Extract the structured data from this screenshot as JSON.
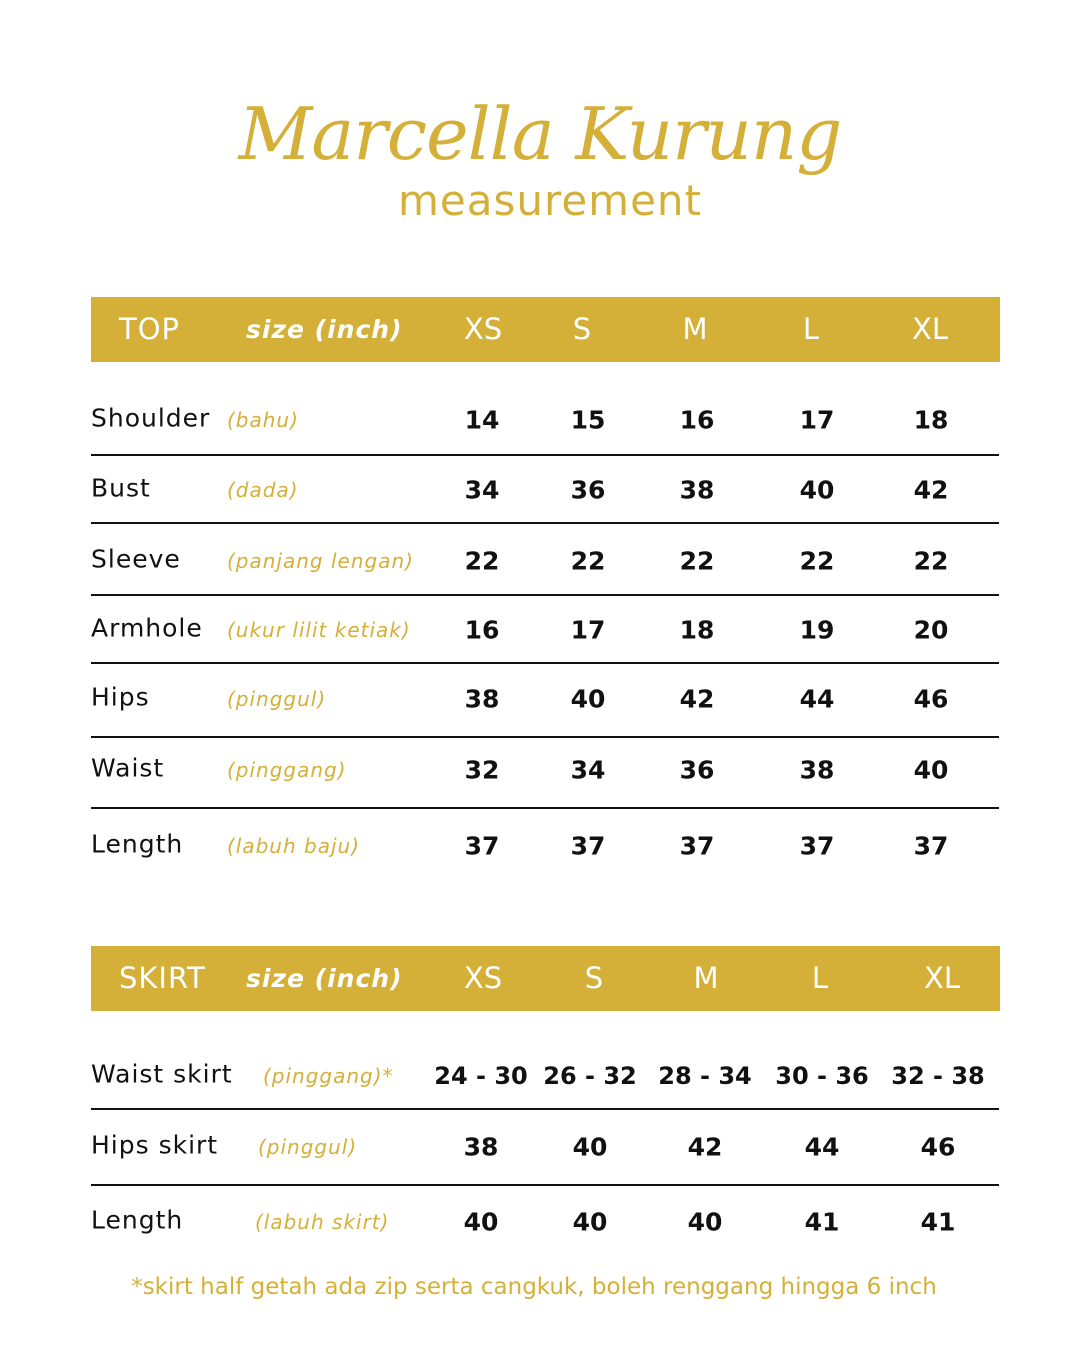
{
  "title": "Marcella Kurung",
  "subtitle": "measurement",
  "accent_color": "#d4b038",
  "top": {
    "section": "TOP",
    "unit": "size (inch)",
    "sizes": [
      "XS",
      "S",
      "M",
      "L",
      "XL"
    ],
    "rows": [
      {
        "label": "Shoulder",
        "local": "(bahu)",
        "values": [
          "14",
          "15",
          "16",
          "17",
          "18"
        ]
      },
      {
        "label": "Bust",
        "local": "(dada)",
        "values": [
          "34",
          "36",
          "38",
          "40",
          "42"
        ]
      },
      {
        "label": "Sleeve",
        "local": "(panjang lengan)",
        "values": [
          "22",
          "22",
          "22",
          "22",
          "22"
        ]
      },
      {
        "label": "Armhole",
        "local": "(ukur lilit ketiak)",
        "values": [
          "16",
          "17",
          "18",
          "19",
          "20"
        ]
      },
      {
        "label": "Hips",
        "local": "(pinggul)",
        "values": [
          "38",
          "40",
          "42",
          "44",
          "46"
        ]
      },
      {
        "label": "Waist",
        "local": "(pinggang)",
        "values": [
          "32",
          "34",
          "36",
          "38",
          "40"
        ]
      },
      {
        "label": "Length",
        "local": "(labuh baju)",
        "values": [
          "37",
          "37",
          "37",
          "37",
          "37"
        ]
      }
    ]
  },
  "skirt": {
    "section": "SKIRT",
    "unit": "size (inch)",
    "sizes": [
      "XS",
      "S",
      "M",
      "L",
      "XL"
    ],
    "rows": [
      {
        "label": "Waist skirt",
        "local": "(pinggang)*",
        "values": [
          "24 - 30",
          "26 - 32",
          "28 - 34",
          "30 - 36",
          "32 - 38"
        ]
      },
      {
        "label": "Hips skirt",
        "local": "(pinggul)",
        "values": [
          "38",
          "40",
          "42",
          "44",
          "46"
        ]
      },
      {
        "label": "Length",
        "local": "(labuh skirt)",
        "values": [
          "40",
          "40",
          "40",
          "41",
          "41"
        ]
      }
    ]
  },
  "note": "*skirt half getah ada zip serta cangkuk, boleh renggang hingga 6 inch"
}
